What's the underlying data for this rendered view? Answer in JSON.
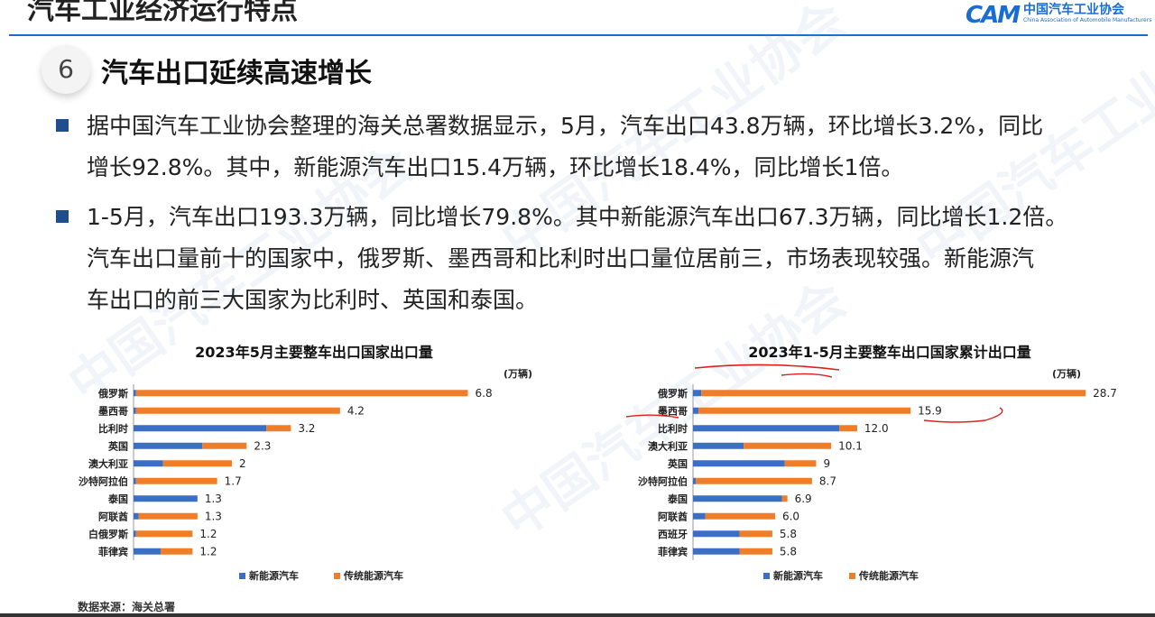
{
  "header": {
    "title": "汽车工业经济运行特点"
  },
  "logo": {
    "mark": "CAM",
    "name_cn": "中国汽车工业协会",
    "name_en": "China Association of Automobile Manufacturers"
  },
  "section": {
    "number": "6",
    "title": "汽车出口延续高速增长"
  },
  "paragraphs": [
    {
      "lines": [
        "据中国汽车工业协会整理的海关总署数据显示，5月，汽车出口43.8万辆，环比增长3.2%，同比",
        "增长92.8%。其中，新能源汽车出口15.4万辆，环比增长18.4%，同比增长1倍。"
      ]
    },
    {
      "lines": [
        "1-5月，汽车出口193.3万辆，同比增长79.8%。其中新能源汽车出口67.3万辆，同比增长1.2倍。",
        "汽车出口量前十的国家中，俄罗斯、墨西哥和比利时出口量位居前三，市场表现较强。新能源汽",
        "车出口的前三大国家为比利时、英国和泰国。"
      ]
    }
  ],
  "colors": {
    "nev": "#3a6fc4",
    "trad": "#f07d28",
    "accent": "#1a6dd0"
  },
  "chart_data": [
    {
      "type": "bar",
      "orientation": "horizontal",
      "stacked": true,
      "title": "2023年5月主要整车出口国家出口量",
      "unit": "(万辆)",
      "categories": [
        "俄罗斯",
        "墨西哥",
        "比利时",
        "英国",
        "澳大利亚",
        "沙特阿拉伯",
        "泰国",
        "阿联酋",
        "白俄罗斯",
        "菲律宾"
      ],
      "totals": [
        6.8,
        4.2,
        3.2,
        2.3,
        2,
        1.7,
        1.3,
        1.3,
        1.2,
        1.2
      ],
      "total_labels": [
        "6.8",
        "4.2",
        "3.2",
        "2.3",
        "2",
        "1.7",
        "1.3",
        "1.3",
        "1.2",
        "1.2"
      ],
      "series": [
        {
          "name": "新能源汽车",
          "values": [
            0.05,
            0.05,
            2.7,
            1.4,
            0.6,
            0.05,
            1.3,
            0.1,
            0.05,
            0.55
          ]
        },
        {
          "name": "传统能源汽车",
          "values": [
            6.75,
            4.15,
            0.5,
            0.9,
            1.4,
            1.65,
            0.0,
            1.2,
            1.15,
            0.65
          ]
        }
      ],
      "xlim": [
        0,
        7.8
      ],
      "legend": "bottom"
    },
    {
      "type": "bar",
      "orientation": "horizontal",
      "stacked": true,
      "title": "2023年1-5月主要整车出口国家累计出口量",
      "unit": "(万辆)",
      "categories": [
        "俄罗斯",
        "墨西哥",
        "比利时",
        "澳大利亚",
        "英国",
        "沙特阿拉伯",
        "泰国",
        "阿联酋",
        "西班牙",
        "菲律宾"
      ],
      "totals": [
        28.7,
        15.9,
        12.0,
        10.1,
        9,
        8.7,
        6.9,
        6.0,
        5.8,
        5.8
      ],
      "total_labels": [
        "28.7",
        "15.9",
        "12.0",
        "10.1",
        "9",
        "8.7",
        "6.9",
        "6.0",
        "5.8",
        "5.8"
      ],
      "series": [
        {
          "name": "新能源汽车",
          "values": [
            0.6,
            0.4,
            10.7,
            3.7,
            6.7,
            0.2,
            6.5,
            0.9,
            3.4,
            3.4
          ]
        },
        {
          "name": "传统能源汽车",
          "values": [
            28.1,
            15.5,
            1.3,
            6.4,
            2.3,
            8.5,
            0.4,
            5.1,
            2.4,
            2.4
          ]
        }
      ],
      "xlim": [
        0,
        31
      ],
      "legend": "bottom"
    }
  ],
  "source": "数据来源：海关总署",
  "watermark": "中国汽车工业协会"
}
